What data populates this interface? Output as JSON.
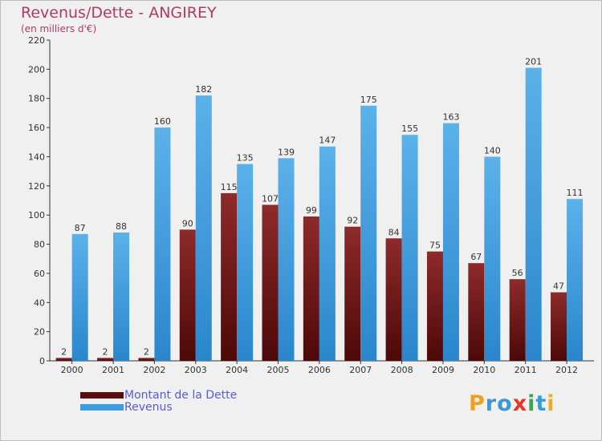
{
  "title": "Revenus/Dette - ANGIREY",
  "subtitle": "(en milliers d'€)",
  "colors": {
    "dette": "#7a1c1c",
    "revenus": "#3d9be0",
    "title": "#b0396a",
    "legend_text": "#5a5adc"
  },
  "legend": {
    "items": [
      {
        "label": "Montant de la Dette",
        "color": "#5a0d0d"
      },
      {
        "label": "Revenus",
        "color": "#3d9be0"
      }
    ]
  },
  "logo": {
    "letters": [
      {
        "char": "P",
        "color": "#f0a020"
      },
      {
        "char": "r",
        "color": "#3a9ad9"
      },
      {
        "char": "o",
        "color": "#3a9ad9"
      },
      {
        "char": "x",
        "color": "#e03a2a"
      },
      {
        "char": "i",
        "color": "#3aa84a"
      },
      {
        "char": "t",
        "color": "#3a9ad9"
      },
      {
        "char": "i",
        "color": "#e8b020"
      }
    ]
  },
  "chart_data": {
    "type": "bar",
    "categories": [
      "2000",
      "2001",
      "2002",
      "2003",
      "2004",
      "2005",
      "2006",
      "2007",
      "2008",
      "2009",
      "2010",
      "2011",
      "2012"
    ],
    "series": [
      {
        "name": "Montant de la Dette",
        "values": [
          2,
          2,
          2,
          90,
          115,
          107,
          99,
          92,
          84,
          75,
          67,
          56,
          47
        ]
      },
      {
        "name": "Revenus",
        "values": [
          87,
          88,
          160,
          182,
          135,
          139,
          147,
          175,
          155,
          163,
          140,
          201,
          111
        ]
      }
    ],
    "data_labels": {
      "Montant de la Dette": [
        "2",
        "2",
        "2",
        "90",
        "115",
        "107",
        "99",
        "92",
        "84",
        "75",
        "67",
        "56",
        "47"
      ],
      "Revenus": [
        "87",
        "88",
        "160",
        "182",
        "135",
        "139",
        "147",
        "175",
        "155",
        "163",
        "140",
        "201",
        "111"
      ]
    },
    "y_ticks": [
      "0",
      "20",
      "40",
      "60",
      "80",
      "100",
      "120",
      "140",
      "160",
      "180",
      "200",
      "220"
    ],
    "ylim": [
      0,
      220
    ],
    "grid": false,
    "legend_position": "bottom-left"
  }
}
